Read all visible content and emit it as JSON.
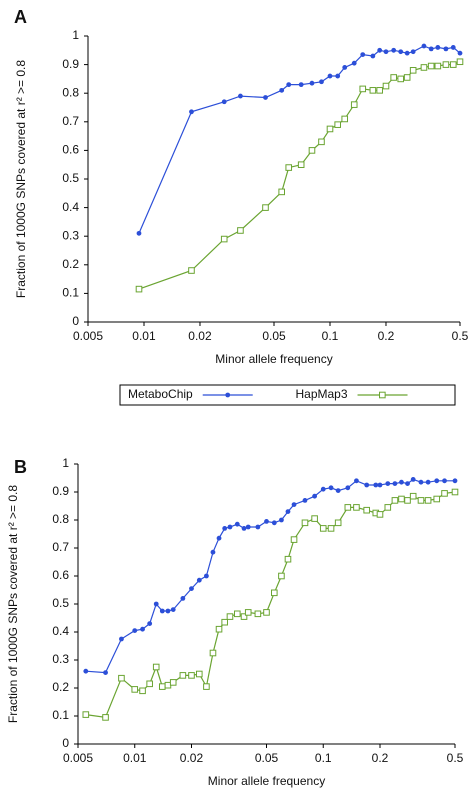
{
  "chart_data": [
    {
      "type": "line",
      "panel_label": "A",
      "xlabel": "Minor allele frequency",
      "ylabel": "Fraction of 1000G SNPs covered at r² >= 0.8",
      "log_x": true,
      "grid": false,
      "legend": "bottom",
      "xlim": [
        0.005,
        0.5
      ],
      "xticks": [
        0.005,
        0.01,
        0.02,
        0.05,
        0.1,
        0.2,
        0.5
      ],
      "ylim": [
        0,
        1
      ],
      "yticks": [
        0,
        0.1,
        0.2,
        0.3,
        0.4,
        0.5,
        0.6,
        0.7,
        0.8,
        0.9,
        1
      ],
      "x": [
        0.0094,
        0.018,
        0.027,
        0.033,
        0.045,
        0.055,
        0.06,
        0.07,
        0.08,
        0.09,
        0.1,
        0.11,
        0.12,
        0.135,
        0.15,
        0.17,
        0.185,
        0.2,
        0.22,
        0.24,
        0.26,
        0.28,
        0.32,
        0.35,
        0.38,
        0.42,
        0.46,
        0.5
      ],
      "series": [
        {
          "name": "MetaboChip",
          "color": "#2c4fd8",
          "marker": "circle",
          "values": [
            0.31,
            0.735,
            0.77,
            0.79,
            0.785,
            0.81,
            0.83,
            0.83,
            0.835,
            0.84,
            0.86,
            0.86,
            0.89,
            0.905,
            0.935,
            0.93,
            0.95,
            0.945,
            0.95,
            0.945,
            0.94,
            0.945,
            0.965,
            0.955,
            0.96,
            0.955,
            0.96,
            0.94
          ]
        },
        {
          "name": "HapMap3",
          "color": "#6aa431",
          "marker": "square",
          "values": [
            0.115,
            0.18,
            0.29,
            0.32,
            0.4,
            0.455,
            0.54,
            0.55,
            0.6,
            0.63,
            0.675,
            0.69,
            0.71,
            0.76,
            0.815,
            0.81,
            0.81,
            0.825,
            0.855,
            0.85,
            0.855,
            0.88,
            0.89,
            0.895,
            0.895,
            0.9,
            0.9,
            0.91
          ]
        }
      ]
    },
    {
      "type": "line",
      "panel_label": "B",
      "xlabel": "Minor allele frequency",
      "ylabel": "Fraction of 1000G SNPs covered at r² >= 0.8",
      "log_x": true,
      "grid": false,
      "xlim": [
        0.005,
        0.5
      ],
      "xticks": [
        0.005,
        0.01,
        0.02,
        0.05,
        0.1,
        0.2,
        0.5
      ],
      "ylim": [
        0,
        1
      ],
      "yticks": [
        0,
        0.1,
        0.2,
        0.3,
        0.4,
        0.5,
        0.6,
        0.7,
        0.8,
        0.9,
        1
      ],
      "x": [
        0.0055,
        0.007,
        0.0085,
        0.01,
        0.011,
        0.012,
        0.013,
        0.014,
        0.015,
        0.016,
        0.018,
        0.02,
        0.022,
        0.024,
        0.026,
        0.028,
        0.03,
        0.032,
        0.035,
        0.038,
        0.04,
        0.045,
        0.05,
        0.055,
        0.06,
        0.065,
        0.07,
        0.08,
        0.09,
        0.1,
        0.11,
        0.12,
        0.135,
        0.15,
        0.17,
        0.19,
        0.2,
        0.22,
        0.24,
        0.26,
        0.28,
        0.3,
        0.33,
        0.36,
        0.4,
        0.44,
        0.5
      ],
      "series": [
        {
          "color": "#2c4fd8",
          "marker": "circle",
          "values": [
            0.26,
            0.255,
            0.375,
            0.405,
            0.41,
            0.43,
            0.5,
            0.475,
            0.475,
            0.48,
            0.52,
            0.555,
            0.585,
            0.6,
            0.685,
            0.735,
            0.77,
            0.775,
            0.785,
            0.77,
            0.775,
            0.775,
            0.795,
            0.79,
            0.8,
            0.83,
            0.855,
            0.87,
            0.885,
            0.91,
            0.915,
            0.905,
            0.915,
            0.94,
            0.925,
            0.925,
            0.925,
            0.93,
            0.93,
            0.935,
            0.93,
            0.945,
            0.935,
            0.935,
            0.94,
            0.94,
            0.94
          ]
        },
        {
          "color": "#6aa431",
          "marker": "square",
          "values": [
            0.105,
            0.095,
            0.235,
            0.195,
            0.19,
            0.215,
            0.275,
            0.205,
            0.21,
            0.22,
            0.245,
            0.245,
            0.25,
            0.205,
            0.325,
            0.41,
            0.435,
            0.455,
            0.465,
            0.455,
            0.47,
            0.465,
            0.47,
            0.54,
            0.6,
            0.66,
            0.73,
            0.79,
            0.805,
            0.77,
            0.77,
            0.79,
            0.845,
            0.845,
            0.835,
            0.825,
            0.82,
            0.845,
            0.87,
            0.875,
            0.87,
            0.885,
            0.87,
            0.87,
            0.875,
            0.895,
            0.9
          ]
        }
      ]
    }
  ]
}
